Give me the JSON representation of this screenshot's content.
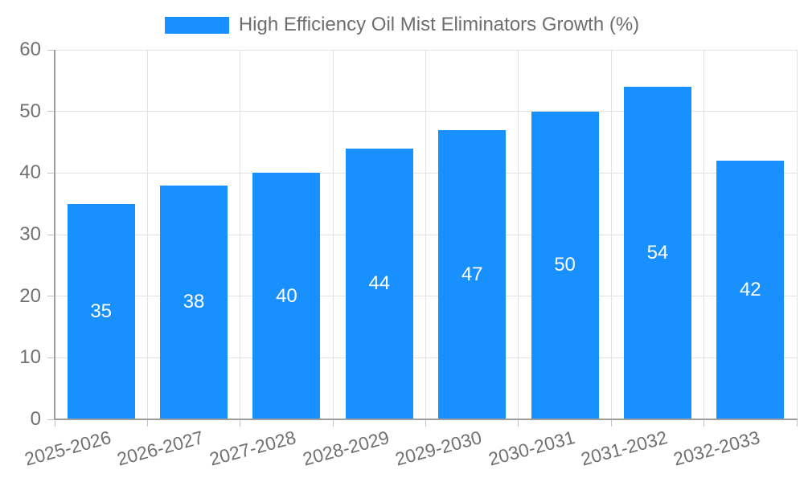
{
  "chart_data": {
    "type": "bar",
    "title": "High Efficiency Oil Mist Eliminators Growth (%)",
    "categories": [
      "2025-2026",
      "2026-2027",
      "2027-2028",
      "2028-2029",
      "2029-2030",
      "2030-2031",
      "2031-2032",
      "2032-2033"
    ],
    "values": [
      35,
      38,
      40,
      44,
      47,
      50,
      54,
      42
    ],
    "xlabel": "",
    "ylabel": "",
    "ylim": [
      0,
      60
    ],
    "yticks": [
      0,
      10,
      20,
      30,
      40,
      50,
      60
    ],
    "grid": true,
    "legend_position": "top",
    "value_labels_inside_bars": true,
    "x_label_rotation_deg": -15,
    "colors": {
      "bar": "#1890FF",
      "value_label": "#FFFFFF",
      "axis_text": "#717171",
      "legend_text": "#6E6E6E",
      "axis_line": "#9E9E9E",
      "gridline": "#E3E3E3",
      "tick": "#C2C2C2",
      "background": "#FFFFFF"
    }
  }
}
